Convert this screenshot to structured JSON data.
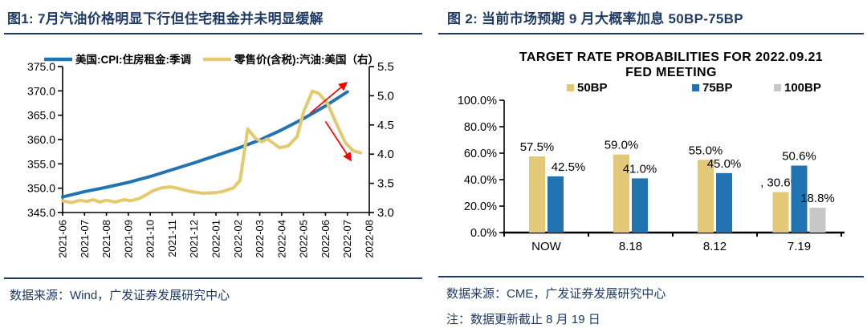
{
  "page": {
    "background": "#ffffff",
    "accent_navy": "#1f3a64",
    "arrow_red": "#fe0000"
  },
  "figure1": {
    "title": "图1: 7月汽油价格明显下行但住宅租金并未明显缓解",
    "source": "数据来源：Wind，广发证券发展研究中心"
  },
  "figure2": {
    "title": "图 2: 当前市场预期 9 月大概率加息 50BP-75BP",
    "source": "数据来源：CME，广发证券发展研究中心",
    "note": "注：数据更新截止 8 月 19 日"
  },
  "chart_data": [
    {
      "type": "line",
      "x_categories": [
        "2021-06",
        "2021-07",
        "2021-08",
        "2021-09",
        "2021-10",
        "2021-11",
        "2021-12",
        "2022-01",
        "2022-02",
        "2022-03",
        "2022-04",
        "2022-05",
        "2022-06",
        "2022-07",
        "2022-08"
      ],
      "y_left": {
        "min": 345,
        "max": 375,
        "ticks": [
          "375.0",
          "370.0",
          "365.0",
          "360.0",
          "355.0",
          "350.0",
          "345.0"
        ]
      },
      "y_right": {
        "min": 3.0,
        "max": 5.5,
        "ticks": [
          "5.5",
          "5.0",
          "4.5",
          "4.0",
          "3.5",
          "3.0"
        ]
      },
      "legend_position": "top",
      "grid": false,
      "series": [
        {
          "name": "美国:CPI:住房租金:季调",
          "axis": "left",
          "color": "#2273b2",
          "points": [
            [
              0,
              348.2
            ],
            [
              1,
              349.3
            ],
            [
              2,
              350.2
            ],
            [
              3,
              351.2
            ],
            [
              4,
              352.4
            ],
            [
              5,
              353.8
            ],
            [
              6,
              355.2
            ],
            [
              7,
              356.7
            ],
            [
              8,
              358.2
            ],
            [
              9,
              359.9
            ],
            [
              10,
              362.0
            ],
            [
              11,
              364.3
            ],
            [
              12,
              366.9
            ],
            [
              13,
              369.8
            ]
          ]
        },
        {
          "name": "零售价(含税):汽油:美国（右）",
          "axis": "right",
          "color": "#e4c96e",
          "points": [
            [
              0,
              3.2
            ],
            [
              0.4,
              3.17
            ],
            [
              0.8,
              3.21
            ],
            [
              1.1,
              3.19
            ],
            [
              1.4,
              3.22
            ],
            [
              1.7,
              3.18
            ],
            [
              2.0,
              3.21
            ],
            [
              2.4,
              3.18
            ],
            [
              2.8,
              3.22
            ],
            [
              3.1,
              3.2
            ],
            [
              3.5,
              3.24
            ],
            [
              3.8,
              3.3
            ],
            [
              4.1,
              3.37
            ],
            [
              4.5,
              3.42
            ],
            [
              4.9,
              3.44
            ],
            [
              5.2,
              3.42
            ],
            [
              5.6,
              3.38
            ],
            [
              6.0,
              3.35
            ],
            [
              6.4,
              3.33
            ],
            [
              7.0,
              3.34
            ],
            [
              7.3,
              3.36
            ],
            [
              7.8,
              3.42
            ],
            [
              8.1,
              3.55
            ],
            [
              8.3,
              4.05
            ],
            [
              8.45,
              4.43
            ],
            [
              8.8,
              4.27
            ],
            [
              9.1,
              4.21
            ],
            [
              9.35,
              4.26
            ],
            [
              9.9,
              4.11
            ],
            [
              10.3,
              4.14
            ],
            [
              10.7,
              4.3
            ],
            [
              11.0,
              4.72
            ],
            [
              11.4,
              5.08
            ],
            [
              11.7,
              5.04
            ],
            [
              12.1,
              4.86
            ],
            [
              12.5,
              4.52
            ],
            [
              12.9,
              4.2
            ],
            [
              13.25,
              4.06
            ],
            [
              13.6,
              4.02
            ]
          ]
        }
      ],
      "annotations": [
        {
          "type": "arrow",
          "axis": "right",
          "from": [
            11.3,
            4.7
          ],
          "to": [
            12.95,
            5.22
          ],
          "color": "#fe0000"
        },
        {
          "type": "arrow",
          "axis": "right",
          "from": [
            12.0,
            4.56
          ],
          "to": [
            13.15,
            3.9
          ],
          "color": "#fe0000"
        }
      ]
    },
    {
      "type": "bar",
      "title_lines": [
        "TARGET RATE PROBABILITIES FOR 2022.09.21",
        "FED MEETING"
      ],
      "categories": [
        "NOW",
        "8.18",
        "8.12",
        "7.19"
      ],
      "series": [
        {
          "name": "50BP",
          "color": "#e3c878",
          "values": [
            57.5,
            59.0,
            55.0,
            30.6
          ],
          "labels": [
            "57.5%",
            "59.0%",
            "55.0%",
            ", 30.6%"
          ]
        },
        {
          "name": "75BP",
          "color": "#2273b2",
          "values": [
            42.5,
            41.0,
            45.0,
            50.6
          ],
          "labels": [
            "42.5%",
            "41.0%",
            "45.0%",
            "50.6%"
          ]
        },
        {
          "name": "100BP",
          "color": "#c7c7c7",
          "values": [
            null,
            null,
            null,
            18.8
          ],
          "labels": [
            null,
            null,
            null,
            "18.8%"
          ]
        }
      ],
      "ylim": [
        0,
        100
      ],
      "y_ticks": [
        "100.0%",
        "80.0%",
        "60.0%",
        "40.0%",
        "20.0%",
        "0.0%"
      ],
      "legend_position": "top",
      "grid": false
    }
  ]
}
